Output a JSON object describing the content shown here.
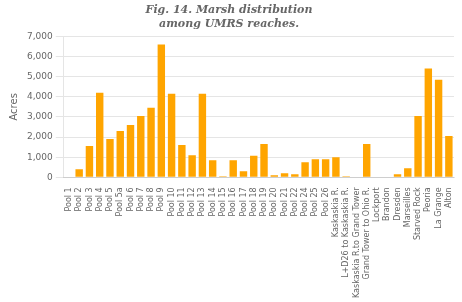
{
  "chart_data": {
    "type": "bar",
    "title": "Fig. 14. Marsh distribution\namong UMRS reaches.",
    "ylabel": "Acres",
    "categories": [
      "Pool 1",
      "Pool 2",
      "Pool 3",
      "Pool 4",
      "Pool 5",
      "Pool 5a",
      "Pool 6",
      "Pool 7",
      "Pool 8",
      "Pool 9",
      "Pool 10",
      "Pool 11",
      "Pool 12",
      "Pool 13",
      "Pool 14",
      "Pool 15",
      "Pool 16",
      "Pool 17",
      "Pool 18",
      "Pool 19",
      "Pool 20",
      "Pool 21",
      "Pool 22",
      "Pool 24",
      "Pool 25",
      "Pool 26",
      "Kaskaskia R.",
      "L+D26 to Kaskaskia R.",
      "Kaskaskia R.to Grand Tower",
      "Grand Tower to Ohio R.",
      "Lockport",
      "Brandon",
      "Dresden",
      "Marseilles",
      "Starved Rock",
      "Peoria",
      "La Grange",
      "Alton"
    ],
    "values": [
      0,
      400,
      1550,
      4200,
      1900,
      2300,
      2600,
      3050,
      3450,
      6600,
      4150,
      1600,
      1100,
      4150,
      850,
      50,
      850,
      300,
      1075,
      1650,
      100,
      200,
      150,
      750,
      900,
      900,
      1000,
      50,
      0,
      1650,
      0,
      0,
      150,
      450,
      3050,
      5400,
      4850,
      2050
    ],
    "color": "#FFA500",
    "ylim": [
      0,
      7000
    ],
    "yticks": [
      0,
      1000,
      2000,
      3000,
      4000,
      5000,
      6000,
      7000
    ],
    "grid": true
  }
}
